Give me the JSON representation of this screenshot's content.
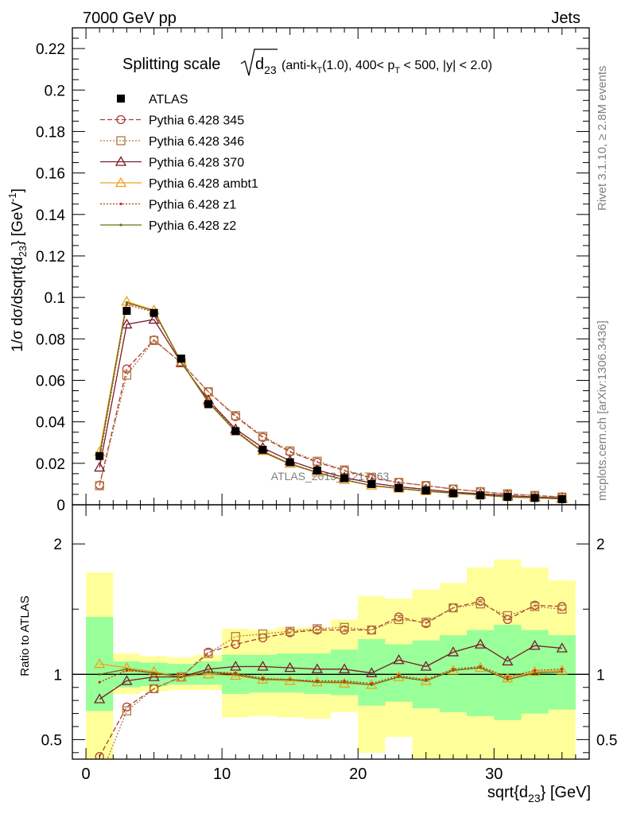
{
  "header": {
    "left": "7000 GeV pp",
    "right": "Jets"
  },
  "side_labels": {
    "rivet": "Rivet 3.1.10, ≥ 2.8M events",
    "mcplots": "mcplots.cern.ch [arXiv:1306.3436]"
  },
  "watermark": "ATLAS_2013_I1217863",
  "chart_data": [
    {
      "type": "line",
      "title_main": "Splitting scale",
      "title_sym": "d",
      "title_sym_sub": "23",
      "title_cut_1": "(anti-k",
      "title_cut_1_sub": "T",
      "title_cut_2": "(1.0), 400< p",
      "title_cut_2_sub": "T",
      "title_cut_3": " < 500, |y| < 2.0)",
      "ylabel": "1/σ dσ/dsqrt{d_23} [GeV^-1]",
      "ylabel_parts": {
        "a": "1/σ dσ/dsqrt{d",
        "sub": "23",
        "b": "} [GeV",
        "sup": "-1",
        "c": "]"
      },
      "xlim": [
        -1,
        37
      ],
      "ylim": [
        0,
        0.23
      ],
      "yticks": [
        0,
        0.02,
        0.04,
        0.06,
        0.08,
        0.1,
        0.12,
        0.14,
        0.16,
        0.18,
        0.2,
        0.22
      ],
      "ytick_labels": [
        "0",
        "0.02",
        "0.04",
        "0.06",
        "0.08",
        "0.1",
        "0.12",
        "0.14",
        "0.16",
        "0.18",
        "0.2",
        "0.22"
      ],
      "x": [
        1,
        3,
        5,
        7,
        9,
        11,
        13,
        15,
        17,
        19,
        21,
        23,
        25,
        27,
        29,
        31,
        33,
        35
      ],
      "legend_position": "top-left",
      "series": [
        {
          "name": "ATLAS",
          "color": "#000000",
          "marker": "square-filled",
          "line": "none",
          "values": [
            0.0235,
            0.0935,
            0.0925,
            0.0705,
            0.0485,
            0.0355,
            0.0265,
            0.0205,
            0.0165,
            0.0128,
            0.01,
            0.0081,
            0.0069,
            0.0055,
            0.0045,
            0.0038,
            0.0033,
            0.0027
          ]
        },
        {
          "name": "Pythia 6.428 345",
          "color": "#b03a3a",
          "marker": "circle-open",
          "line": "dashed",
          "values": [
            0.0095,
            0.0655,
            0.0795,
            0.0685,
            0.0545,
            0.0425,
            0.0325,
            0.0255,
            0.0205,
            0.0165,
            0.0128,
            0.0108,
            0.0092,
            0.0076,
            0.0064,
            0.0051,
            0.0045,
            0.0038
          ]
        },
        {
          "name": "Pythia 6.428 346",
          "color": "#b07a3a",
          "marker": "square-open",
          "line": "dotted",
          "values": [
            0.0092,
            0.0625,
            0.0792,
            0.0685,
            0.0545,
            0.043,
            0.033,
            0.026,
            0.021,
            0.0168,
            0.0132,
            0.0108,
            0.0093,
            0.0076,
            0.0063,
            0.0053,
            0.0045,
            0.0037
          ]
        },
        {
          "name": "Pythia 6.428 370",
          "color": "#7a1a2a",
          "marker": "triangle-open",
          "line": "solid",
          "values": [
            0.018,
            0.087,
            0.0893,
            0.0685,
            0.0505,
            0.0365,
            0.0275,
            0.0212,
            0.0168,
            0.0132,
            0.0105,
            0.0087,
            0.0074,
            0.0061,
            0.0053,
            0.0044,
            0.0038,
            0.0032
          ]
        },
        {
          "name": "Pythia 6.428 ambt1",
          "color": "#f0a020",
          "marker": "triangle-open",
          "line": "solid",
          "values": [
            0.0255,
            0.098,
            0.0938,
            0.069,
            0.0495,
            0.0355,
            0.026,
            0.0198,
            0.0156,
            0.012,
            0.0093,
            0.0078,
            0.0066,
            0.0056,
            0.0047,
            0.0038,
            0.0034,
            0.0028
          ]
        },
        {
          "name": "Pythia 6.428 z1",
          "color": "#cc2a1a",
          "marker": "dot",
          "line": "dotted",
          "values": [
            0.022,
            0.0965,
            0.093,
            0.0688,
            0.0498,
            0.0358,
            0.0258,
            0.0198,
            0.0157,
            0.0122,
            0.0093,
            0.008,
            0.0066,
            0.0057,
            0.0048,
            0.0039,
            0.0034,
            0.0028
          ]
        },
        {
          "name": "Pythia 6.428 z2",
          "color": "#707010",
          "marker": "dot",
          "line": "solid",
          "values": [
            0.0235,
            0.0975,
            0.0935,
            0.0688,
            0.0493,
            0.0353,
            0.0255,
            0.0196,
            0.0155,
            0.012,
            0.0092,
            0.0079,
            0.0065,
            0.0056,
            0.0047,
            0.0037,
            0.0033,
            0.0028
          ]
        }
      ]
    },
    {
      "type": "line",
      "ylabel": "Ratio to ATLAS",
      "xlabel": "sqrt{d_23} [GeV]",
      "xlabel_parts": {
        "a": "sqrt{d",
        "sub": "23",
        "b": "} [GeV]"
      },
      "xlim": [
        -1,
        37
      ],
      "ylim": [
        0.35,
        2.3
      ],
      "xticks": [
        0,
        10,
        20,
        30
      ],
      "xtick_labels": [
        "0",
        "10",
        "20",
        "30"
      ],
      "yticks": [
        0.5,
        1,
        2
      ],
      "ytick_labels": [
        "0.5",
        "1",
        "2"
      ],
      "x": [
        1,
        3,
        5,
        7,
        9,
        11,
        13,
        15,
        17,
        19,
        21,
        23,
        25,
        27,
        29,
        31,
        33,
        35
      ],
      "bin_edges": [
        0,
        2,
        4,
        6,
        8,
        10,
        12,
        14,
        16,
        18,
        20,
        22,
        24,
        26,
        28,
        30,
        32,
        34,
        36
      ],
      "bands": {
        "yellow_color": "#ffff99",
        "green_color": "#99ff99",
        "yellow_lo": [
          0.35,
          0.85,
          0.87,
          0.88,
          0.88,
          0.67,
          0.68,
          0.67,
          0.66,
          0.71,
          0.4,
          0.52,
          0.35,
          0.35,
          0.35,
          0.35,
          0.35,
          0.35
        ],
        "yellow_hi": [
          1.78,
          1.16,
          1.14,
          1.13,
          1.15,
          1.35,
          1.34,
          1.36,
          1.36,
          1.42,
          1.6,
          1.58,
          1.65,
          1.7,
          1.82,
          1.88,
          1.82,
          1.72
        ],
        "green_lo": [
          0.72,
          0.9,
          0.91,
          0.92,
          0.92,
          0.85,
          0.86,
          0.86,
          0.85,
          0.84,
          0.76,
          0.79,
          0.74,
          0.71,
          0.68,
          0.65,
          0.7,
          0.73
        ],
        "green_hi": [
          1.44,
          1.1,
          1.09,
          1.08,
          1.1,
          1.15,
          1.15,
          1.16,
          1.16,
          1.19,
          1.27,
          1.23,
          1.26,
          1.3,
          1.34,
          1.38,
          1.34,
          1.3
        ]
      },
      "series": [
        {
          "name": "Pythia 6.428 345",
          "color": "#b03a3a",
          "marker": "circle-open",
          "line": "dashed",
          "values": [
            0.37,
            0.75,
            0.89,
            0.98,
            1.17,
            1.23,
            1.28,
            1.32,
            1.34,
            1.34,
            1.34,
            1.44,
            1.39,
            1.51,
            1.56,
            1.42,
            1.53,
            1.52
          ]
        },
        {
          "name": "Pythia 6.428 346",
          "color": "#b07a3a",
          "marker": "square-open",
          "line": "dotted",
          "values": [
            0.2,
            0.72,
            0.89,
            0.98,
            1.16,
            1.29,
            1.31,
            1.33,
            1.35,
            1.36,
            1.34,
            1.42,
            1.4,
            1.51,
            1.54,
            1.45,
            1.52,
            1.5
          ]
        },
        {
          "name": "Pythia 6.428 370",
          "color": "#7a1a2a",
          "marker": "triangle-open",
          "line": "solid",
          "values": [
            0.81,
            0.95,
            0.98,
            0.98,
            1.04,
            1.06,
            1.06,
            1.05,
            1.04,
            1.04,
            1.01,
            1.11,
            1.06,
            1.17,
            1.23,
            1.1,
            1.22,
            1.2
          ]
        },
        {
          "name": "Pythia 6.428 ambt1",
          "color": "#f0a020",
          "marker": "triangle-open",
          "line": "solid",
          "values": [
            1.08,
            1.05,
            1.02,
            0.98,
            1.0,
            0.99,
            0.96,
            0.95,
            0.94,
            0.93,
            0.92,
            0.98,
            0.95,
            1.03,
            1.05,
            0.97,
            1.02,
            1.03
          ]
        },
        {
          "name": "Pythia 6.428 z1",
          "color": "#cc2a1a",
          "marker": "dot",
          "line": "dotted",
          "values": [
            0.94,
            1.03,
            1.01,
            0.98,
            1.02,
            1.01,
            0.97,
            0.96,
            0.95,
            0.95,
            0.93,
            0.99,
            0.96,
            1.04,
            1.06,
            0.98,
            1.03,
            1.04
          ]
        },
        {
          "name": "Pythia 6.428 z2",
          "color": "#707010",
          "marker": "dot",
          "line": "solid",
          "values": [
            1.0,
            1.04,
            1.01,
            0.98,
            1.02,
            1.0,
            0.96,
            0.96,
            0.94,
            0.94,
            0.92,
            0.98,
            0.95,
            1.03,
            1.05,
            0.96,
            1.01,
            1.02
          ]
        }
      ]
    }
  ]
}
